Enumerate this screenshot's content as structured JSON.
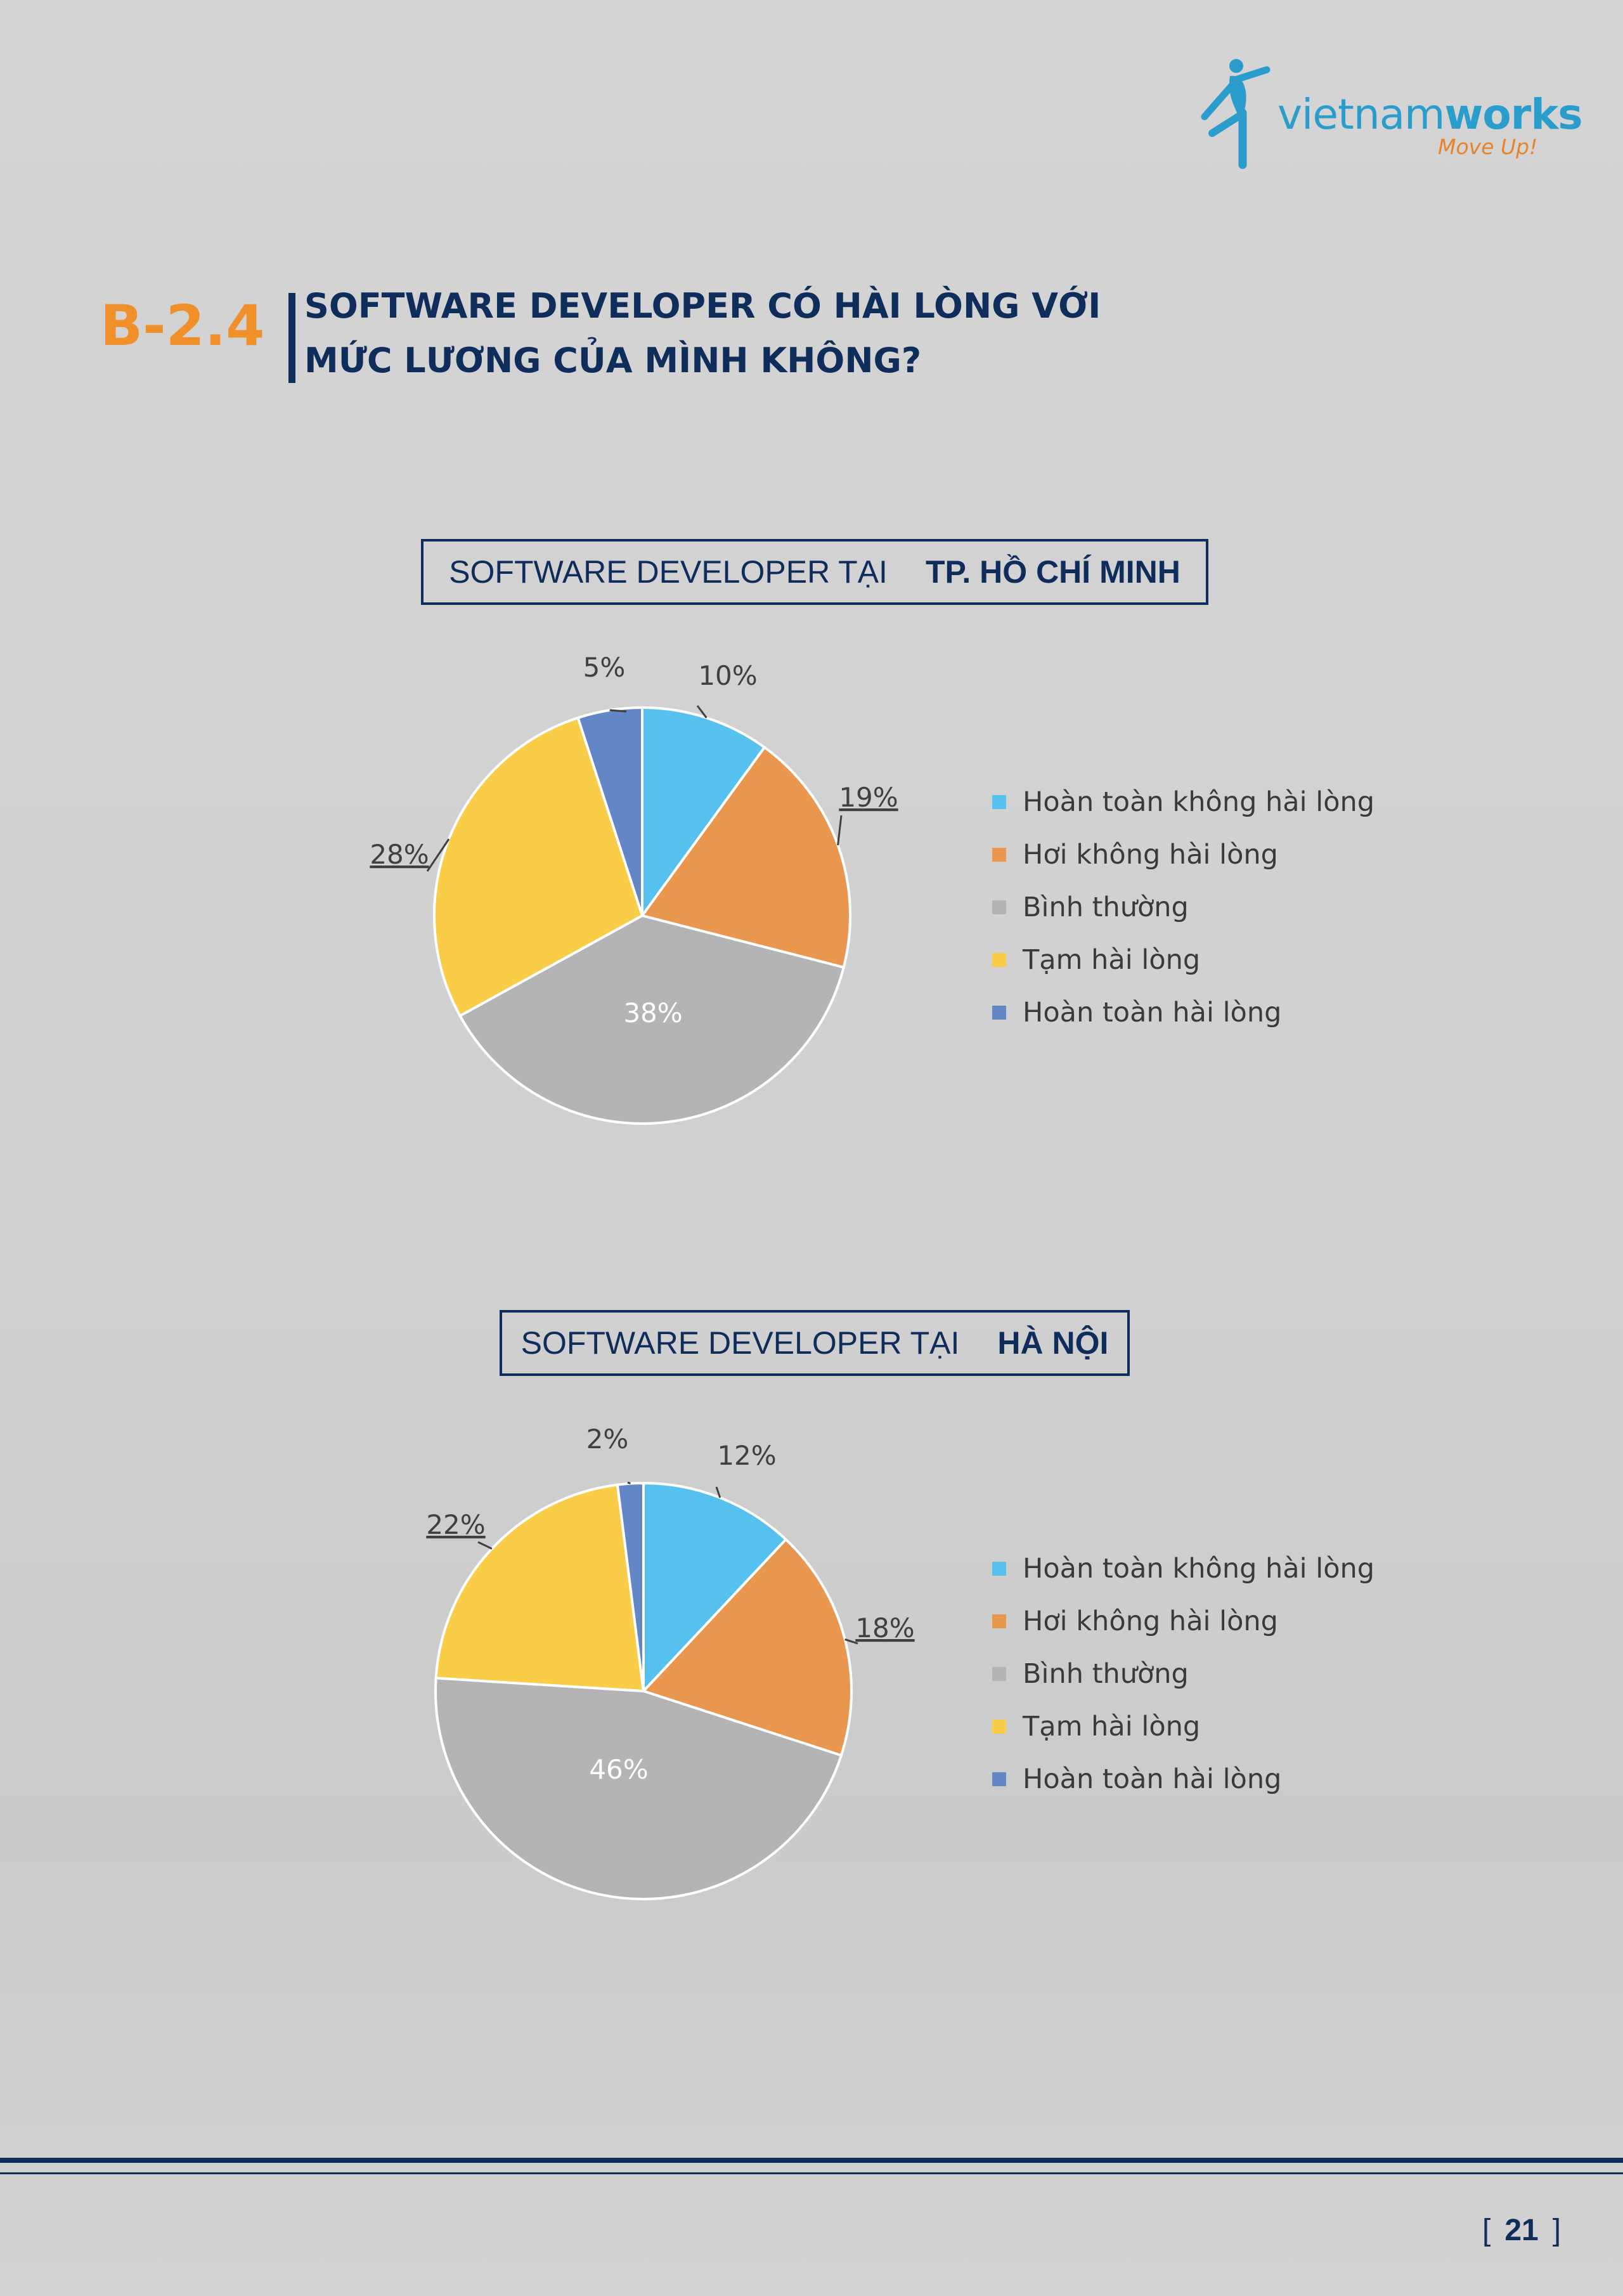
{
  "logo": {
    "text_light": "vietnam",
    "text_bold": "works",
    "tagline": "Move Up!"
  },
  "section": {
    "number": "B-2.4",
    "title_line1": "SOFTWARE DEVELOPER CÓ HÀI LÒNG VỚI",
    "title_line2": "MỨC LƯƠNG CỦA MÌNH KHÔNG?"
  },
  "colors": {
    "primary_navy": "#0f2d5a",
    "accent_orange": "#f0902a",
    "series": [
      "#56c1ef",
      "#e9964f",
      "#b4b4b6",
      "#f9cd48",
      "#6386c6"
    ]
  },
  "chart_data": [
    {
      "type": "pie",
      "title_prefix": "SOFTWARE DEVELOPER TẠI",
      "title_location": "TP. HỒ CHÍ MINH",
      "categories": [
        "Hoàn toàn không hài lòng",
        "Hơi không hài lòng",
        "Bình thường",
        "Tạm hài lòng",
        "Hoàn toàn hài lòng"
      ],
      "values": [
        10,
        19,
        38,
        28,
        5
      ],
      "labels": [
        "10%",
        "19%",
        "38%",
        "28%",
        "5%"
      ],
      "legend": "right"
    },
    {
      "type": "pie",
      "title_prefix": "SOFTWARE DEVELOPER TẠI",
      "title_location": "HÀ NỘI",
      "categories": [
        "Hoàn toàn không hài lòng",
        "Hơi không hài lòng",
        "Bình thường",
        "Tạm hài lòng",
        "Hoàn toàn hài lòng"
      ],
      "values": [
        12,
        18,
        46,
        22,
        2
      ],
      "labels": [
        "12%",
        "18%",
        "46%",
        "22%",
        "2%"
      ],
      "legend": "right"
    }
  ],
  "page_number": "21"
}
